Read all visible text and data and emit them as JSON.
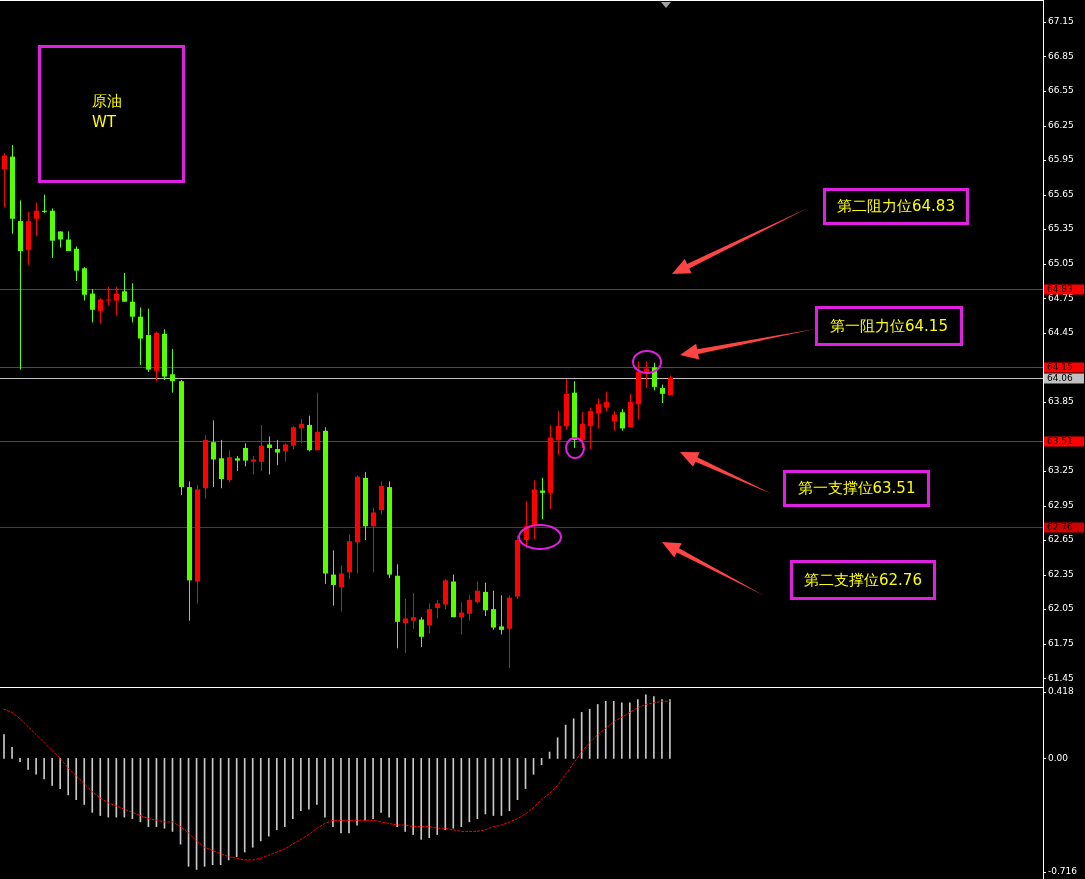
{
  "chart_data": [
    {
      "type": "candlestick",
      "title": "原油 WT",
      "categories": [
        null,
        null,
        null,
        null,
        null,
        null,
        null,
        null,
        null,
        null,
        null,
        null,
        null,
        null,
        null,
        null,
        null,
        null,
        null,
        null,
        null,
        null,
        null,
        null,
        null,
        null,
        null,
        null,
        null,
        null,
        null,
        null,
        null,
        null,
        null,
        null,
        null,
        null,
        null,
        null,
        null,
        null,
        null,
        null,
        null,
        null,
        null,
        null,
        null,
        null,
        null,
        null,
        null,
        null,
        null,
        null,
        null,
        null,
        null,
        null,
        null,
        null,
        null,
        null,
        null,
        null,
        null,
        null,
        null,
        null,
        null,
        null,
        null,
        null,
        null,
        null,
        null,
        null,
        null,
        null,
        null,
        null,
        null,
        null,
        null,
        null,
        null,
        null,
        null,
        null,
        null,
        null,
        null,
        null,
        null,
        null,
        null,
        null,
        null,
        null,
        null,
        null,
        null,
        null,
        null,
        null,
        null,
        null,
        null,
        null,
        null,
        null,
        null,
        null,
        null,
        null,
        null,
        null,
        null,
        null,
        null,
        null,
        null,
        null,
        null,
        null,
        null,
        null,
        null,
        null
      ],
      "ohlc": [
        [
          65.87,
          66.01,
          65.54,
          65.99
        ],
        [
          65.98,
          66.08,
          65.31,
          65.44
        ],
        [
          65.42,
          65.6,
          64.13,
          65.16
        ],
        [
          65.17,
          65.5,
          65.04,
          65.42
        ],
        [
          65.44,
          65.58,
          65.29,
          65.51
        ],
        [
          65.51,
          65.65,
          65.49,
          65.5
        ],
        [
          65.51,
          65.53,
          65.1,
          65.25
        ],
        [
          65.33,
          65.33,
          65.19,
          65.26
        ],
        [
          65.26,
          65.33,
          65.16,
          65.16
        ],
        [
          65.18,
          65.2,
          64.9,
          64.99
        ],
        [
          65.01,
          65.02,
          64.73,
          64.78
        ],
        [
          64.79,
          64.83,
          64.54,
          64.65
        ],
        [
          64.64,
          64.75,
          64.53,
          64.74
        ],
        [
          64.73,
          64.85,
          64.69,
          64.74
        ],
        [
          64.73,
          64.85,
          64.6,
          64.79
        ],
        [
          64.81,
          64.97,
          64.72,
          64.72
        ],
        [
          64.72,
          64.88,
          64.54,
          64.59
        ],
        [
          64.59,
          64.67,
          64.17,
          64.4
        ],
        [
          64.43,
          64.66,
          64.11,
          64.13
        ],
        [
          64.12,
          64.46,
          64.03,
          64.45
        ],
        [
          64.44,
          64.48,
          64.04,
          64.07
        ],
        [
          64.09,
          64.31,
          63.93,
          64.03
        ],
        [
          64.03,
          64.04,
          63.04,
          63.11
        ],
        [
          63.11,
          63.16,
          61.95,
          62.3
        ],
        [
          62.29,
          63.13,
          62.1,
          63.09
        ],
        [
          63.1,
          63.56,
          63.01,
          63.52
        ],
        [
          63.5,
          63.69,
          63.11,
          63.35
        ],
        [
          63.36,
          63.52,
          63.1,
          63.18
        ],
        [
          63.17,
          63.43,
          63.15,
          63.37
        ],
        [
          63.36,
          63.38,
          63.25,
          63.34
        ],
        [
          63.45,
          63.49,
          63.29,
          63.34
        ],
        [
          63.33,
          63.38,
          63.22,
          63.35
        ],
        [
          63.33,
          63.65,
          63.25,
          63.47
        ],
        [
          63.48,
          63.55,
          63.22,
          63.45
        ],
        [
          63.44,
          63.52,
          63.3,
          63.41
        ],
        [
          63.42,
          63.49,
          63.33,
          63.48
        ],
        [
          63.47,
          63.64,
          63.44,
          63.63
        ],
        [
          63.62,
          63.7,
          63.49,
          63.66
        ],
        [
          63.65,
          63.73,
          63.42,
          63.43
        ],
        [
          63.43,
          63.93,
          63.43,
          63.59
        ],
        [
          63.6,
          63.63,
          62.27,
          62.36
        ],
        [
          62.35,
          62.56,
          62.08,
          62.26
        ],
        [
          62.24,
          62.43,
          62.03,
          62.36
        ],
        [
          62.37,
          62.7,
          62.31,
          62.64
        ],
        [
          62.63,
          63.21,
          62.36,
          63.2
        ],
        [
          63.19,
          63.24,
          62.65,
          62.77
        ],
        [
          62.77,
          62.93,
          62.37,
          62.89
        ],
        [
          62.91,
          63.16,
          62.87,
          63.12
        ],
        [
          63.11,
          63.16,
          62.32,
          62.35
        ],
        [
          62.34,
          62.44,
          61.71,
          61.94
        ],
        [
          61.93,
          62.14,
          61.67,
          61.97
        ],
        [
          61.95,
          62.19,
          61.88,
          61.98
        ],
        [
          61.96,
          61.98,
          61.72,
          61.81
        ],
        [
          61.91,
          62.1,
          61.84,
          62.05
        ],
        [
          62.06,
          62.13,
          61.97,
          62.1
        ],
        [
          62.09,
          62.31,
          62.05,
          62.3
        ],
        [
          62.29,
          62.35,
          61.98,
          61.98
        ],
        [
          61.98,
          62.11,
          61.83,
          62.02
        ],
        [
          62.01,
          62.17,
          61.95,
          62.13
        ],
        [
          62.11,
          62.29,
          62.1,
          62.21
        ],
        [
          62.2,
          62.28,
          61.99,
          62.04
        ],
        [
          62.05,
          62.21,
          61.87,
          61.89
        ],
        [
          61.9,
          62.17,
          61.83,
          61.87
        ],
        [
          61.88,
          62.17,
          61.54,
          62.15
        ],
        [
          62.16,
          62.69,
          62.14,
          62.65
        ],
        [
          62.65,
          62.99,
          62.58,
          62.77
        ],
        [
          62.78,
          63.17,
          62.66,
          63.09
        ],
        [
          63.08,
          63.19,
          62.83,
          63.06
        ],
        [
          63.06,
          63.65,
          62.92,
          63.54
        ],
        [
          63.52,
          63.77,
          63.39,
          63.64
        ],
        [
          63.64,
          64.05,
          63.61,
          63.92
        ],
        [
          63.93,
          64.03,
          63.45,
          63.52
        ],
        [
          63.52,
          63.76,
          63.45,
          63.66
        ],
        [
          63.64,
          63.8,
          63.44,
          63.77
        ],
        [
          63.75,
          63.88,
          63.62,
          63.83
        ],
        [
          63.8,
          63.94,
          63.77,
          63.85
        ],
        [
          63.68,
          63.77,
          63.6,
          63.74
        ],
        [
          63.76,
          63.79,
          63.6,
          63.62
        ],
        [
          63.63,
          63.92,
          63.63,
          63.85
        ],
        [
          63.83,
          64.2,
          63.7,
          64.11
        ],
        [
          64.11,
          64.2,
          63.97,
          64.14
        ],
        [
          64.15,
          64.19,
          63.95,
          63.98
        ],
        [
          63.97,
          64.0,
          63.84,
          63.92
        ],
        [
          63.91,
          64.08,
          63.91,
          64.06
        ],
        null,
        null,
        null,
        null,
        null,
        null,
        null,
        null,
        null,
        null,
        null,
        null,
        null,
        null,
        null,
        null,
        null,
        null,
        null,
        null,
        null,
        null,
        null,
        null,
        null,
        null,
        null,
        null,
        null,
        null,
        null,
        null,
        null,
        null,
        null,
        null,
        null,
        null,
        null,
        null,
        null,
        null,
        null,
        null,
        null,
        null
      ],
      "colors": [
        "#ff0000",
        "#55ff00",
        "#55ff00",
        "#ff0000",
        "#ff0000",
        "#55ff00",
        "#55ff00",
        "#55ff00",
        "#55ff00",
        "#55ff00",
        "#55ff00",
        "#55ff00",
        "#ff0000",
        "#ff0000",
        "#ff0000",
        "#55ff00",
        "#55ff00",
        "#55ff00",
        "#55ff00",
        "#ff0000",
        "#55ff00",
        "#55ff00",
        "#55ff00",
        "#55ff00",
        "#ff0000",
        "#ff0000",
        "#55ff00",
        "#55ff00",
        "#ff0000",
        "#55ff00",
        "#55ff00",
        "#ff0000",
        "#ff0000",
        "#55ff00",
        "#55ff00",
        "#ff0000",
        "#ff0000",
        "#ff0000",
        "#55ff00",
        "#ff0000",
        "#55ff00",
        "#55ff00",
        "#ff0000",
        "#ff0000",
        "#ff0000",
        "#55ff00",
        "#ff0000",
        "#ff0000",
        "#55ff00",
        "#55ff00",
        "#ff0000",
        "#ff0000",
        "#55ff00",
        "#ff0000",
        "#ff0000",
        "#ff0000",
        "#55ff00",
        "#ff0000",
        "#ff0000",
        "#ff0000",
        "#55ff00",
        "#55ff00",
        "#55ff00",
        "#ff0000",
        "#ff0000",
        "#ff0000",
        "#ff0000",
        "#55ff00",
        "#ff0000",
        "#ff0000",
        "#ff0000",
        "#55ff00",
        "#ff0000",
        "#ff0000",
        "#ff0000",
        "#ff0000",
        "#ff0000",
        "#55ff00",
        "#ff0000",
        "#ff0000",
        "#ff0000",
        "#55ff00",
        "#55ff00",
        "#ff0000",
        null,
        null,
        null,
        null,
        null,
        null,
        null,
        null,
        null,
        null,
        null,
        null,
        null,
        null,
        null,
        null,
        null,
        null,
        null,
        null,
        null,
        null,
        null,
        null,
        null,
        null,
        null,
        null,
        null,
        null,
        null,
        null,
        null,
        null,
        null,
        null,
        null,
        null,
        null,
        null,
        null,
        null,
        null,
        null,
        null,
        null
      ],
      "ylim": [
        61.4,
        67.34
      ],
      "yticks": [
        61.45,
        61.75,
        62.05,
        62.35,
        62.65,
        62.95,
        63.25,
        63.85,
        64.45,
        64.75,
        65.05,
        65.35,
        65.65,
        65.95,
        66.25,
        66.55,
        66.85,
        67.15
      ],
      "ref_lines": [
        {
          "axis": "y",
          "value": 64.83,
          "label": "64.83",
          "color": "#ff0000"
        },
        {
          "axis": "y",
          "value": 64.15,
          "label": "64.15",
          "color": "#ff0000"
        },
        {
          "axis": "y",
          "value": 64.06,
          "label": "64.06",
          "color": "#c0c0c0"
        },
        {
          "axis": "y",
          "value": 63.51,
          "label": "63.51",
          "color": "#ff0000"
        },
        {
          "axis": "y",
          "value": 62.76,
          "label": "62.76",
          "color": "#d00000"
        }
      ],
      "annotations": [
        "第二阻力位64.83",
        "第一阻力位64.15",
        "第一支撑位63.51",
        "第二支撑位62.76"
      ],
      "tick_labels": "y"
    },
    {
      "type": "bar",
      "categories": [
        null,
        null,
        null,
        null,
        null,
        null,
        null,
        null,
        null,
        null,
        null,
        null,
        null,
        null,
        null,
        null,
        null,
        null,
        null,
        null,
        null,
        null,
        null,
        null,
        null,
        null,
        null,
        null,
        null,
        null,
        null,
        null,
        null,
        null,
        null,
        null,
        null,
        null,
        null,
        null,
        null,
        null,
        null,
        null,
        null,
        null,
        null,
        null,
        null,
        null,
        null,
        null,
        null,
        null,
        null,
        null,
        null,
        null,
        null,
        null,
        null,
        null,
        null,
        null,
        null,
        null,
        null,
        null,
        null,
        null,
        null,
        null,
        null,
        null,
        null,
        null,
        null,
        null,
        null,
        null,
        null,
        null,
        null,
        null,
        null,
        null,
        null,
        null,
        null,
        null,
        null,
        null,
        null,
        null,
        null,
        null,
        null,
        null,
        null,
        null,
        null,
        null,
        null,
        null,
        null,
        null,
        null,
        null,
        null,
        null,
        null,
        null,
        null,
        null,
        null,
        null,
        null,
        null,
        null,
        null,
        null,
        null,
        null,
        null,
        null,
        null,
        null,
        null,
        null,
        null
      ],
      "series": [
        {
          "type": "bar",
          "color": "#c8c8c8",
          "values": [
            0.15,
            0.07,
            -0.02,
            -0.07,
            -0.1,
            -0.13,
            -0.17,
            -0.19,
            -0.23,
            -0.26,
            -0.29,
            -0.34,
            -0.36,
            -0.37,
            -0.37,
            -0.37,
            -0.38,
            -0.4,
            -0.43,
            -0.43,
            -0.44,
            -0.46,
            -0.54,
            -0.68,
            -0.7,
            -0.68,
            -0.67,
            -0.67,
            -0.64,
            -0.62,
            -0.59,
            -0.56,
            -0.52,
            -0.49,
            -0.45,
            -0.43,
            -0.38,
            -0.33,
            -0.32,
            -0.29,
            -0.37,
            -0.43,
            -0.47,
            -0.47,
            -0.42,
            -0.39,
            -0.38,
            -0.34,
            -0.37,
            -0.43,
            -0.46,
            -0.48,
            -0.51,
            -0.5,
            -0.48,
            -0.45,
            -0.44,
            -0.43,
            -0.4,
            -0.38,
            -0.35,
            -0.36,
            -0.36,
            -0.33,
            -0.26,
            -0.19,
            -0.1,
            -0.04,
            0.04,
            0.13,
            0.21,
            0.25,
            0.29,
            0.31,
            0.34,
            0.36,
            0.36,
            0.35,
            0.35,
            0.37,
            0.4,
            0.39,
            0.37,
            0.37,
            null,
            null,
            null,
            null,
            null,
            null,
            null,
            null,
            null,
            null,
            null,
            null,
            null,
            null,
            null,
            null,
            null,
            null,
            null,
            null,
            null,
            null,
            null,
            null,
            null,
            null,
            null,
            null,
            null,
            null,
            null,
            null,
            null,
            null,
            null,
            null,
            null,
            null,
            null,
            null,
            null,
            null,
            null,
            null,
            null,
            null
          ]
        },
        {
          "type": "line",
          "color": "#ff0000",
          "line_style": "dashed",
          "values": [
            0.31,
            0.29,
            0.25,
            0.2,
            0.15,
            0.1,
            0.05,
            0,
            -0.06,
            -0.11,
            -0.16,
            -0.21,
            -0.25,
            -0.28,
            -0.3,
            -0.32,
            -0.34,
            -0.36,
            -0.38,
            -0.39,
            -0.4,
            -0.4,
            -0.43,
            -0.47,
            -0.52,
            -0.56,
            -0.58,
            -0.6,
            -0.62,
            -0.63,
            -0.64,
            -0.64,
            -0.63,
            -0.61,
            -0.59,
            -0.57,
            -0.54,
            -0.51,
            -0.48,
            -0.44,
            -0.41,
            -0.39,
            -0.39,
            -0.39,
            -0.39,
            -0.39,
            -0.39,
            -0.4,
            -0.41,
            -0.42,
            -0.42,
            -0.43,
            -0.43,
            -0.43,
            -0.44,
            -0.44,
            -0.45,
            -0.46,
            -0.46,
            -0.46,
            -0.45,
            -0.43,
            -0.42,
            -0.4,
            -0.38,
            -0.35,
            -0.31,
            -0.26,
            -0.22,
            -0.17,
            -0.1,
            -0.03,
            0.04,
            0.1,
            0.15,
            0.19,
            0.23,
            0.26,
            0.29,
            0.32,
            0.34,
            0.35,
            0.36,
            0.36,
            null,
            null,
            null,
            null,
            null,
            null,
            null,
            null,
            null,
            null,
            null,
            null,
            null,
            null,
            null,
            null,
            null,
            null,
            null,
            null,
            null,
            null,
            null,
            null,
            null,
            null,
            null,
            null,
            null,
            null,
            null,
            null,
            null,
            null,
            null,
            null,
            null,
            null,
            null,
            null,
            null,
            null,
            null,
            null,
            null,
            null
          ]
        }
      ],
      "ylim": [
        -0.76,
        0.45
      ],
      "yticks": [
        0.418,
        {
          "value": 0,
          "label": "0.00"
        },
        -0.716
      ],
      "tick_labels": "y"
    }
  ]
}
